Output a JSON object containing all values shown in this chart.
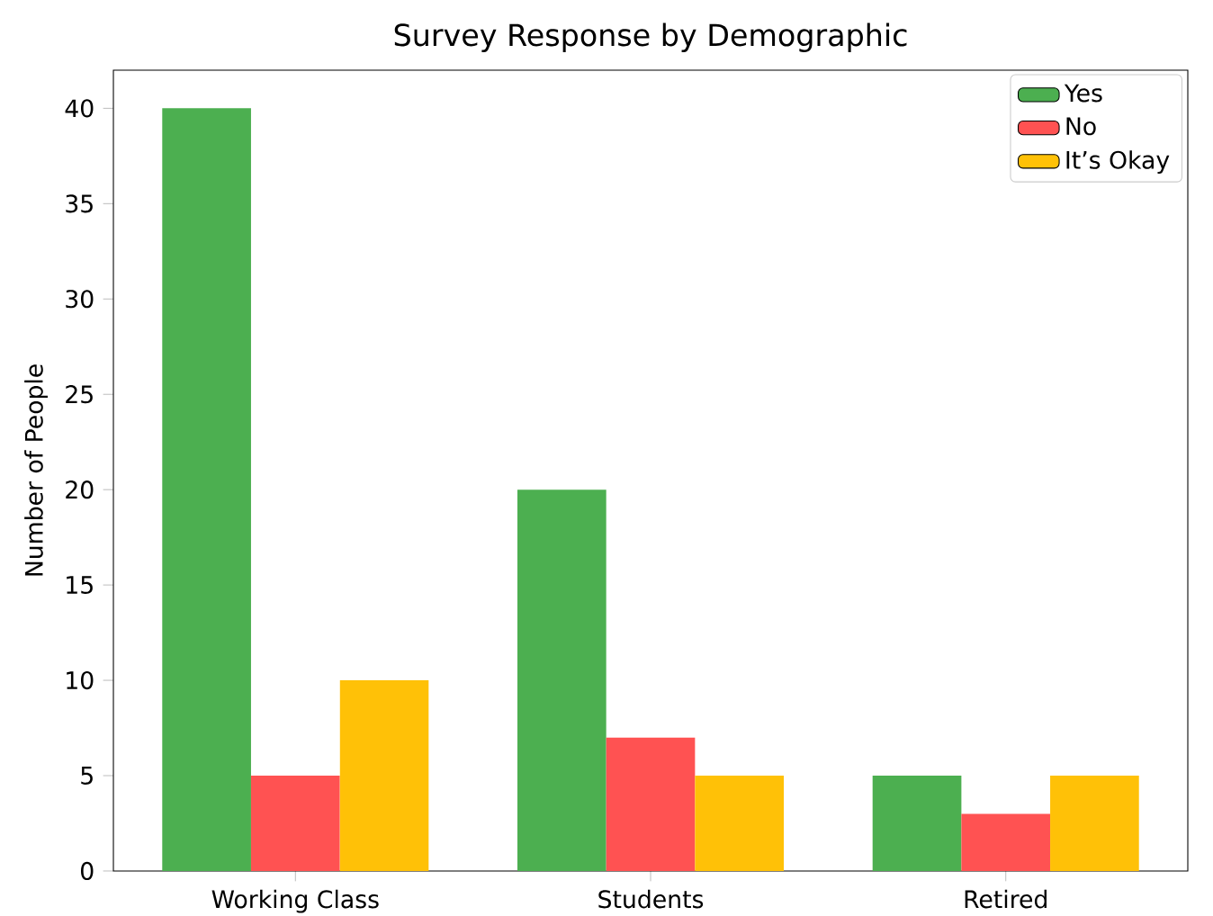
{
  "chart_data": {
    "type": "bar",
    "title": "Survey Response by Demographic",
    "ylabel": "Number of People",
    "categories": [
      "Working Class",
      "Students",
      "Retired"
    ],
    "series": [
      {
        "name": "Yes",
        "color": "#4caf50",
        "values": [
          40,
          20,
          5
        ]
      },
      {
        "name": "No",
        "color": "#ff5252",
        "values": [
          5,
          7,
          3
        ]
      },
      {
        "name": "It’s Okay",
        "color": "#ffc107",
        "values": [
          10,
          5,
          5
        ]
      }
    ],
    "ylim": [
      0,
      42
    ],
    "yticks": [
      0,
      5,
      10,
      15,
      20,
      25,
      30,
      35,
      40
    ],
    "legend": "top right"
  }
}
